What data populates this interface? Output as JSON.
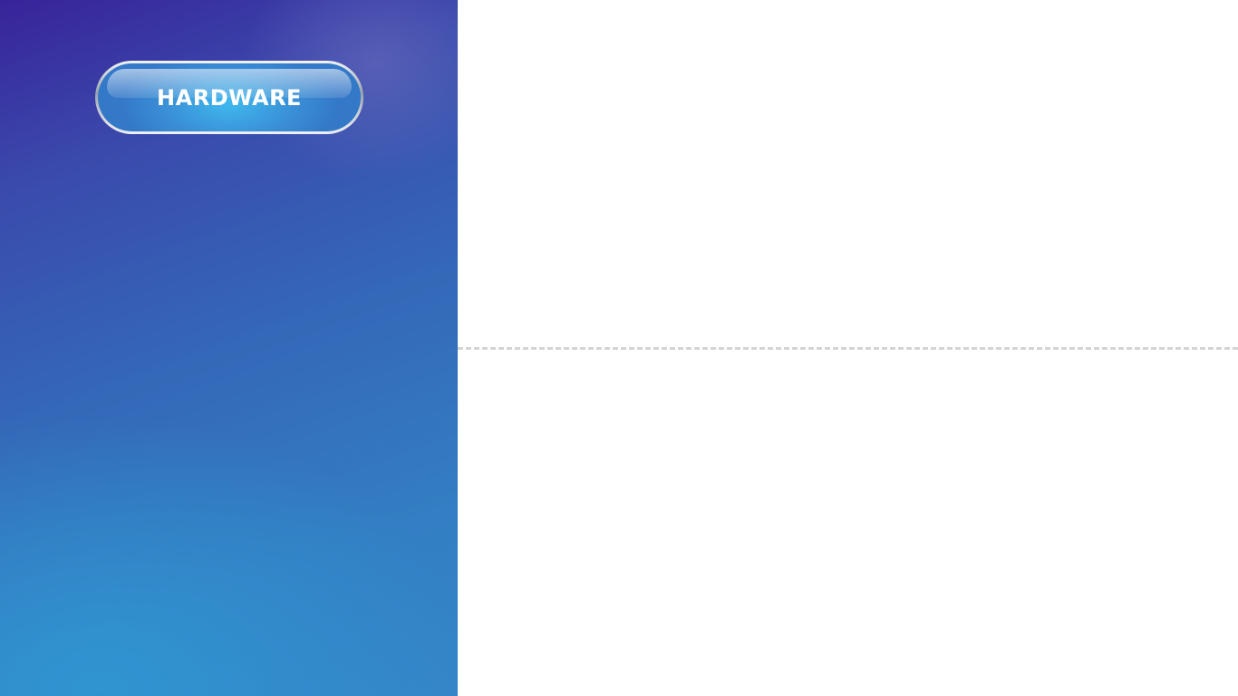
{
  "left_panel": {
    "button": {
      "label": "HARDWARE"
    }
  },
  "colors": {
    "panel_gradient_top": "#38239a",
    "panel_gradient_bottom": "#3485c8",
    "button_blue": "#3a8fd6",
    "button_highlight": "#3fb8ee",
    "divider": "#d4d4d4",
    "background": "#ffffff"
  }
}
